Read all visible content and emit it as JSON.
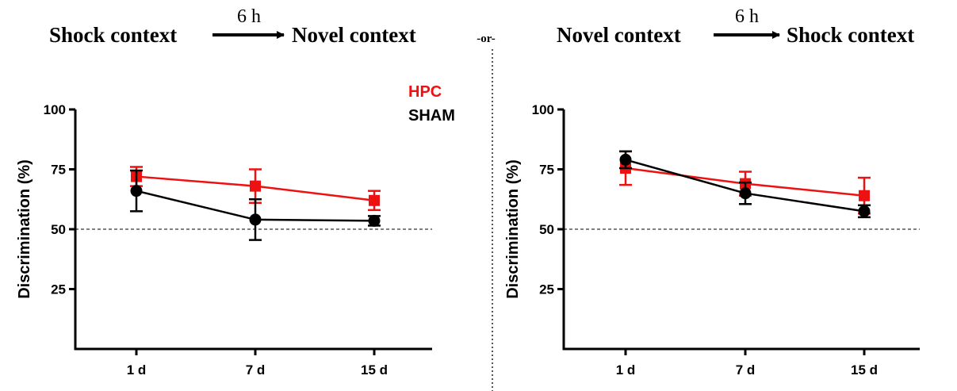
{
  "header": {
    "left": {
      "from": "Shock context",
      "delay": "6 h",
      "to": "Novel context"
    },
    "separator": "-or-",
    "right": {
      "from": "Novel context",
      "delay": "6 h",
      "to": "Shock context"
    }
  },
  "chart_data": [
    {
      "type": "line",
      "categories": [
        "1 d",
        "7 d",
        "15 d"
      ],
      "ylabel": "Discrimination  (%)",
      "ylim": [
        0,
        100
      ],
      "yticks": [
        25,
        50,
        75,
        100
      ],
      "reference_line": 50,
      "legend": {
        "placement": "top-right"
      },
      "series": [
        {
          "name": "HPC",
          "color": "#ee1111",
          "marker": "square",
          "values": [
            72,
            68,
            62
          ],
          "errors": [
            4,
            7,
            4
          ]
        },
        {
          "name": "SHAM",
          "color": "#000000",
          "marker": "circle",
          "values": [
            66,
            54,
            53.5
          ],
          "errors": [
            8.5,
            8.5,
            2
          ]
        }
      ]
    },
    {
      "type": "line",
      "categories": [
        "1 d",
        "7 d",
        "15 d"
      ],
      "ylabel": "Discrimination  (%)",
      "ylim": [
        0,
        100
      ],
      "yticks": [
        25,
        50,
        75,
        100
      ],
      "reference_line": 50,
      "series": [
        {
          "name": "",
          "color": "#ee1111",
          "marker": "square",
          "values": [
            75.5,
            69,
            64
          ],
          "errors": [
            7,
            5,
            7.5
          ]
        },
        {
          "name": "",
          "color": "#000000",
          "marker": "circle",
          "values": [
            79,
            65,
            57.5
          ],
          "errors": [
            3.5,
            4.5,
            2.5
          ]
        }
      ]
    }
  ]
}
